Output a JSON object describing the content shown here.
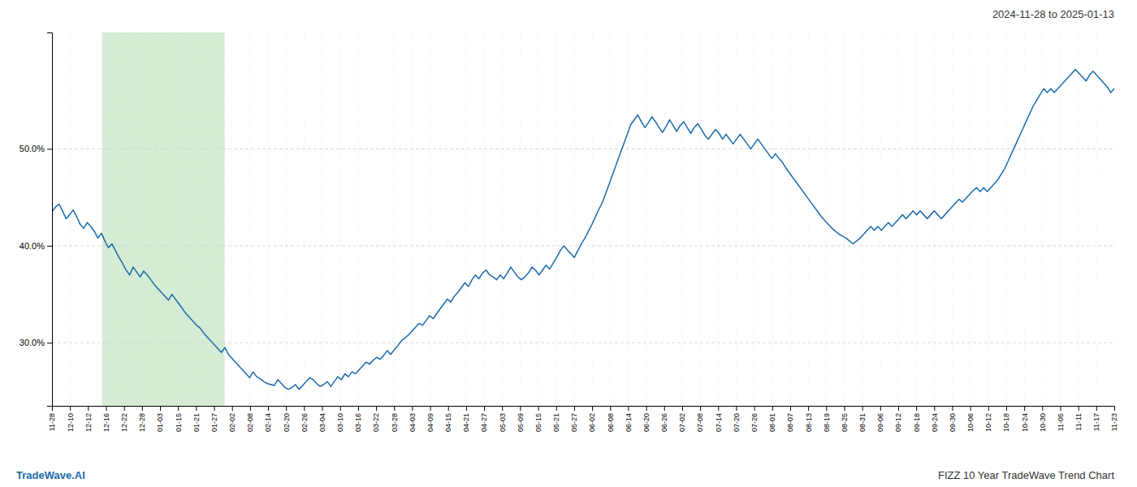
{
  "chart_data": {
    "type": "line",
    "title": "2024-11-28 to 2025-01-13",
    "annotations": [
      {
        "text": "TradeWave.AI"
      },
      {
        "text": "FIZZ 10 Year TradeWave Trend Chart"
      }
    ],
    "color": "#1a6aab",
    "grid": true,
    "highlight": {
      "x": [
        14.194,
        48.924
      ],
      "color": "#d4ecd4"
    },
    "xlim": [
      0,
      301
    ],
    "xticks": [
      {
        "value": 0,
        "label": "11-28"
      },
      {
        "value": 5.1,
        "label": "12-10"
      },
      {
        "value": 10.2,
        "label": "12-12"
      },
      {
        "value": 15.31,
        "label": "12-16"
      },
      {
        "value": 20.41,
        "label": "12-22"
      },
      {
        "value": 25.51,
        "label": "12-28"
      },
      {
        "value": 30.61,
        "label": "01-03"
      },
      {
        "value": 35.71,
        "label": "01-15"
      },
      {
        "value": 40.81,
        "label": "01-21"
      },
      {
        "value": 45.92,
        "label": "01-27"
      },
      {
        "value": 51.02,
        "label": "02-02"
      },
      {
        "value": 56.12,
        "label": "02-08"
      },
      {
        "value": 61.22,
        "label": "02-14"
      },
      {
        "value": 66.32,
        "label": "02-20"
      },
      {
        "value": 71.42,
        "label": "02-26"
      },
      {
        "value": 76.53,
        "label": "03-04"
      },
      {
        "value": 81.63,
        "label": "03-10"
      },
      {
        "value": 86.73,
        "label": "03-16"
      },
      {
        "value": 91.83,
        "label": "03-22"
      },
      {
        "value": 96.93,
        "label": "03-28"
      },
      {
        "value": 102.03,
        "label": "04-03"
      },
      {
        "value": 107.14,
        "label": "04-09"
      },
      {
        "value": 112.24,
        "label": "04-15"
      },
      {
        "value": 117.34,
        "label": "04-21"
      },
      {
        "value": 122.44,
        "label": "04-27"
      },
      {
        "value": 127.54,
        "label": "05-03"
      },
      {
        "value": 132.64,
        "label": "05-09"
      },
      {
        "value": 137.75,
        "label": "05-15"
      },
      {
        "value": 142.85,
        "label": "05-21"
      },
      {
        "value": 147.95,
        "label": "05-27"
      },
      {
        "value": 153.05,
        "label": "06-02"
      },
      {
        "value": 158.15,
        "label": "06-08"
      },
      {
        "value": 163.25,
        "label": "06-14"
      },
      {
        "value": 168.36,
        "label": "06-20"
      },
      {
        "value": 173.46,
        "label": "06-26"
      },
      {
        "value": 178.56,
        "label": "07-02"
      },
      {
        "value": 183.66,
        "label": "07-08"
      },
      {
        "value": 188.76,
        "label": "07-14"
      },
      {
        "value": 193.86,
        "label": "07-20"
      },
      {
        "value": 198.97,
        "label": "07-26"
      },
      {
        "value": 204.07,
        "label": "08-01"
      },
      {
        "value": 209.17,
        "label": "08-07"
      },
      {
        "value": 214.27,
        "label": "08-13"
      },
      {
        "value": 219.37,
        "label": "08-19"
      },
      {
        "value": 224.47,
        "label": "08-25"
      },
      {
        "value": 229.58,
        "label": "08-31"
      },
      {
        "value": 234.68,
        "label": "09-06"
      },
      {
        "value": 239.78,
        "label": "09-12"
      },
      {
        "value": 244.88,
        "label": "09-18"
      },
      {
        "value": 249.98,
        "label": "09-24"
      },
      {
        "value": 255.08,
        "label": "09-30"
      },
      {
        "value": 260.19,
        "label": "10-06"
      },
      {
        "value": 265.29,
        "label": "10-12"
      },
      {
        "value": 270.39,
        "label": "10-18"
      },
      {
        "value": 275.49,
        "label": "10-24"
      },
      {
        "value": 280.59,
        "label": "10-30"
      },
      {
        "value": 285.69,
        "label": "11-05"
      },
      {
        "value": 290.8,
        "label": "11-11"
      },
      {
        "value": 295.9,
        "label": "11-17"
      },
      {
        "value": 301,
        "label": "11-23"
      }
    ],
    "ylim": [
      0.235,
      0.62
    ],
    "yticks": [
      {
        "value": 0.3,
        "label": "30.0%"
      },
      {
        "value": 0.4,
        "label": "40.0%"
      },
      {
        "value": 0.5,
        "label": "50.0%"
      }
    ],
    "values": [
      0.435,
      0.44,
      0.443,
      0.436,
      0.428,
      0.432,
      0.437,
      0.43,
      0.422,
      0.418,
      0.424,
      0.42,
      0.415,
      0.408,
      0.413,
      0.405,
      0.398,
      0.402,
      0.395,
      0.388,
      0.382,
      0.375,
      0.37,
      0.378,
      0.373,
      0.368,
      0.374,
      0.37,
      0.365,
      0.36,
      0.356,
      0.352,
      0.348,
      0.344,
      0.35,
      0.345,
      0.34,
      0.335,
      0.33,
      0.326,
      0.322,
      0.318,
      0.315,
      0.31,
      0.306,
      0.302,
      0.298,
      0.294,
      0.29,
      0.295,
      0.288,
      0.284,
      0.28,
      0.276,
      0.272,
      0.268,
      0.264,
      0.27,
      0.265,
      0.263,
      0.26,
      0.258,
      0.257,
      0.256,
      0.262,
      0.258,
      0.254,
      0.252,
      0.254,
      0.257,
      0.252,
      0.256,
      0.26,
      0.264,
      0.262,
      0.258,
      0.255,
      0.257,
      0.26,
      0.255,
      0.26,
      0.265,
      0.262,
      0.268,
      0.265,
      0.27,
      0.268,
      0.272,
      0.276,
      0.28,
      0.278,
      0.282,
      0.285,
      0.283,
      0.287,
      0.292,
      0.288,
      0.293,
      0.297,
      0.302,
      0.305,
      0.308,
      0.312,
      0.316,
      0.32,
      0.318,
      0.323,
      0.328,
      0.325,
      0.33,
      0.335,
      0.34,
      0.345,
      0.342,
      0.348,
      0.352,
      0.357,
      0.362,
      0.358,
      0.365,
      0.37,
      0.366,
      0.372,
      0.375,
      0.37,
      0.368,
      0.365,
      0.37,
      0.366,
      0.372,
      0.378,
      0.373,
      0.368,
      0.365,
      0.368,
      0.372,
      0.378,
      0.375,
      0.37,
      0.375,
      0.38,
      0.376,
      0.382,
      0.388,
      0.395,
      0.4,
      0.396,
      0.392,
      0.388,
      0.395,
      0.402,
      0.408,
      0.415,
      0.422,
      0.43,
      0.438,
      0.445,
      0.455,
      0.465,
      0.475,
      0.485,
      0.495,
      0.505,
      0.515,
      0.525,
      0.53,
      0.535,
      0.528,
      0.522,
      0.527,
      0.533,
      0.528,
      0.522,
      0.517,
      0.523,
      0.53,
      0.524,
      0.518,
      0.524,
      0.528,
      0.522,
      0.516,
      0.522,
      0.526,
      0.52,
      0.514,
      0.51,
      0.515,
      0.52,
      0.516,
      0.51,
      0.515,
      0.51,
      0.505,
      0.51,
      0.515,
      0.51,
      0.505,
      0.5,
      0.505,
      0.51,
      0.505,
      0.5,
      0.495,
      0.49,
      0.495,
      0.49,
      0.486,
      0.48,
      0.475,
      0.47,
      0.465,
      0.46,
      0.455,
      0.45,
      0.445,
      0.44,
      0.435,
      0.43,
      0.426,
      0.422,
      0.418,
      0.415,
      0.412,
      0.41,
      0.408,
      0.405,
      0.402,
      0.405,
      0.408,
      0.412,
      0.416,
      0.42,
      0.416,
      0.42,
      0.416,
      0.42,
      0.424,
      0.42,
      0.424,
      0.428,
      0.432,
      0.428,
      0.432,
      0.436,
      0.432,
      0.436,
      0.432,
      0.428,
      0.432,
      0.436,
      0.432,
      0.428,
      0.432,
      0.436,
      0.44,
      0.444,
      0.448,
      0.445,
      0.449,
      0.453,
      0.457,
      0.46,
      0.456,
      0.46,
      0.456,
      0.46,
      0.464,
      0.468,
      0.474,
      0.48,
      0.488,
      0.496,
      0.504,
      0.512,
      0.52,
      0.528,
      0.536,
      0.544,
      0.55,
      0.556,
      0.562,
      0.558,
      0.562,
      0.558,
      0.562,
      0.566,
      0.57,
      0.574,
      0.578,
      0.582,
      0.578,
      0.574,
      0.57,
      0.576,
      0.58,
      0.576,
      0.572,
      0.568,
      0.564,
      0.558,
      0.562
    ]
  }
}
